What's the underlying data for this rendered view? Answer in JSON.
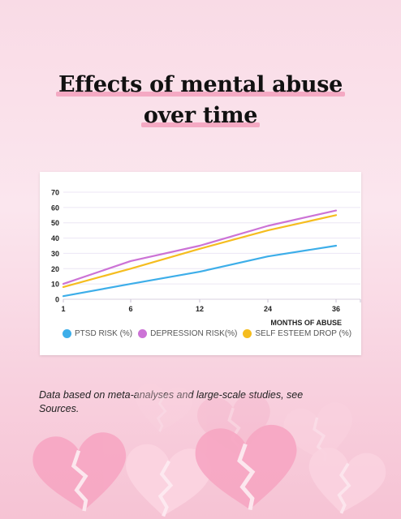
{
  "title": {
    "line1": "Effects of mental abuse",
    "line2": "over time"
  },
  "source_note": "Data based on meta-analyses and large-scale studies, see Sources.",
  "chart_data": {
    "type": "line",
    "categories": [
      "1",
      "6",
      "12",
      "24",
      "36"
    ],
    "xlabel": "MONTHS OF ABUSE",
    "ylabel": "",
    "ylim": [
      0,
      70
    ],
    "yticks": [
      0,
      10,
      20,
      30,
      40,
      50,
      60,
      70
    ],
    "grid": true,
    "legend_placement": "bottom",
    "series": [
      {
        "name": "PTSD RISK (%)",
        "color": "#3daee9",
        "values": [
          2,
          10,
          18,
          28,
          35
        ]
      },
      {
        "name": "DEPRESSION RISK(%)",
        "color": "#cc73d6",
        "values": [
          10,
          25,
          35,
          48,
          58
        ]
      },
      {
        "name": "SELF ESTEEM DROP (%)",
        "color": "#f5bd1f",
        "values": [
          8,
          20,
          33,
          45,
          55
        ]
      }
    ]
  },
  "decor": {
    "hearts_icon": "broken-heart-icon",
    "heart_colors": [
      "#f7a8c4",
      "#fbd3e0",
      "#f290b3"
    ]
  }
}
